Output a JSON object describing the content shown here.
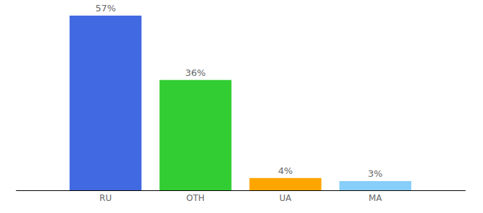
{
  "chart_data": {
    "type": "bar",
    "categories": [
      "RU",
      "OTH",
      "UA",
      "MA"
    ],
    "values": [
      57,
      36,
      4,
      3
    ],
    "value_labels": [
      "57%",
      "36%",
      "4%",
      "3%"
    ],
    "colors": [
      "#4169e1",
      "#32cd32",
      "#ffa500",
      "#87cefa"
    ],
    "ylim": [
      0,
      57
    ],
    "data_labels": true,
    "tick_labels": "x"
  }
}
